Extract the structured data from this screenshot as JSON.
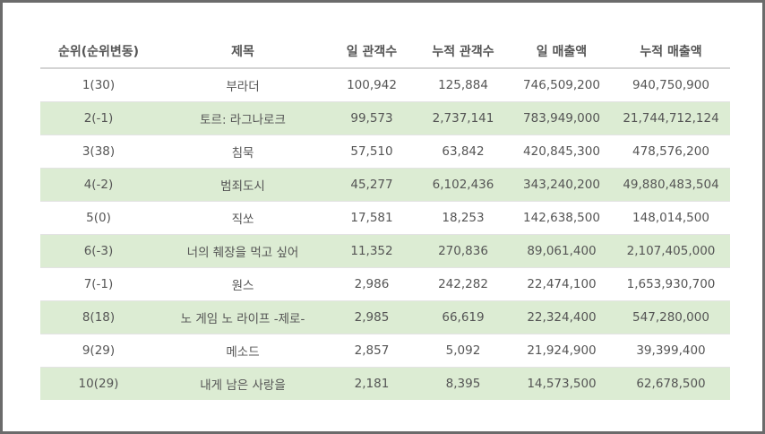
{
  "table": {
    "headers": [
      "순위(순위변동)",
      "제목",
      "일 관객수",
      "누적 관객수",
      "일 매출액",
      "누적 매출액"
    ],
    "rows": [
      [
        "1(30)",
        "부라더",
        "100,942",
        "125,884",
        "746,509,200",
        "940,750,900"
      ],
      [
        "2(-1)",
        "토르: 라그나로크",
        "99,573",
        "2,737,141",
        "783,949,000",
        "21,744,712,124"
      ],
      [
        "3(38)",
        "침묵",
        "57,510",
        "63,842",
        "420,845,300",
        "478,576,200"
      ],
      [
        "4(-2)",
        "범죄도시",
        "45,277",
        "6,102,436",
        "343,240,200",
        "49,880,483,504"
      ],
      [
        "5(0)",
        "직쏘",
        "17,581",
        "18,253",
        "142,638,500",
        "148,014,500"
      ],
      [
        "6(-3)",
        "너의 췌장을 먹고 싶어",
        "11,352",
        "270,836",
        "89,061,400",
        "2,107,405,000"
      ],
      [
        "7(-1)",
        "원스",
        "2,986",
        "242,282",
        "22,474,100",
        "1,653,930,700"
      ],
      [
        "8(18)",
        "노 게임 노 라이프 -제로-",
        "2,985",
        "66,619",
        "22,324,400",
        "547,280,000"
      ],
      [
        "9(29)",
        "메소드",
        "2,857",
        "5,092",
        "21,924,900",
        "39,399,400"
      ],
      [
        "10(29)",
        "내게 남은 사랑을",
        "2,181",
        "8,395",
        "14,573,500",
        "62,678,500"
      ]
    ]
  },
  "colors": {
    "stripe": "#dcecd3",
    "border": "#6b6b6b",
    "text": "#555555"
  }
}
